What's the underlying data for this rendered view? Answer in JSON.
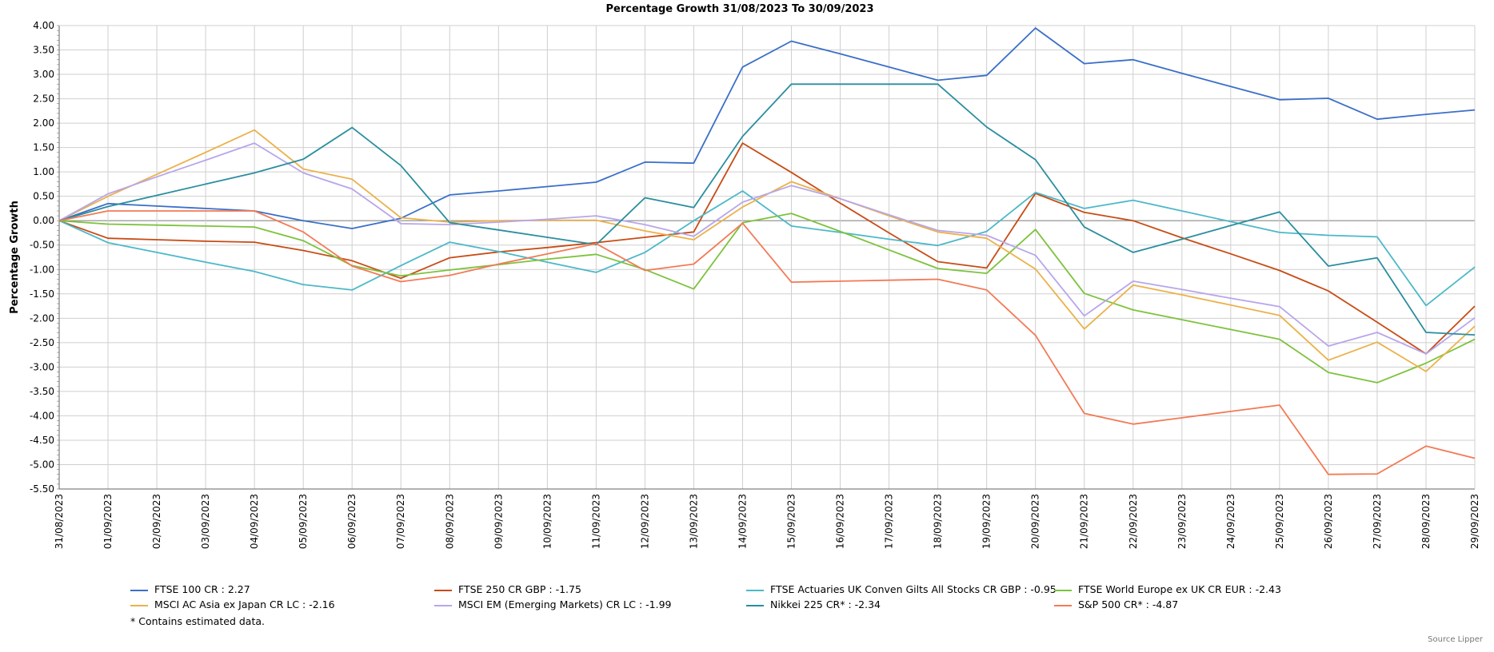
{
  "chart_data": {
    "type": "line",
    "title": "Percentage Growth 31/08/2023 To 30/09/2023",
    "ylabel": "Percentage Growth",
    "ylim": [
      -5.5,
      4.0
    ],
    "yticks": [
      "4.00",
      "3.50",
      "3.00",
      "2.50",
      "2.00",
      "1.50",
      "1.00",
      "0.50",
      "0.00",
      "-0.50",
      "-1.00",
      "-1.50",
      "-2.00",
      "-2.50",
      "-3.00",
      "-3.50",
      "-4.00",
      "-4.50",
      "-5.00",
      "-5.50"
    ],
    "x": [
      "31/08/2023",
      "01/09/2023",
      "02/09/2023",
      "03/09/2023",
      "04/09/2023",
      "05/09/2023",
      "06/09/2023",
      "07/09/2023",
      "08/09/2023",
      "09/09/2023",
      "10/09/2023",
      "11/09/2023",
      "12/09/2023",
      "13/09/2023",
      "14/09/2023",
      "15/09/2023",
      "16/09/2023",
      "17/09/2023",
      "18/09/2023",
      "19/09/2023",
      "20/09/2023",
      "21/09/2023",
      "22/09/2023",
      "23/09/2023",
      "24/09/2023",
      "25/09/2023",
      "26/09/2023",
      "27/09/2023",
      "28/09/2023",
      "29/09/2023"
    ],
    "grid": true,
    "series": [
      {
        "name": "FTSE 100 CR",
        "legend": "FTSE 100 CR : 2.27",
        "color": "#3a6fc8",
        "values": [
          0,
          0.35,
          0.3,
          0.25,
          0.2,
          0.0,
          -0.16,
          0.05,
          0.53,
          0.61,
          0.7,
          0.79,
          1.2,
          1.18,
          3.15,
          3.68,
          3.42,
          3.15,
          2.88,
          2.98,
          3.95,
          3.22,
          3.3,
          3.02,
          2.75,
          2.48,
          2.51,
          2.08,
          2.18,
          2.27
        ]
      },
      {
        "name": "FTSE 250 CR GBP",
        "legend": "FTSE 250 CR GBP : -1.75",
        "color": "#c84b14",
        "values": [
          0,
          -0.36,
          -0.39,
          -0.42,
          -0.44,
          -0.61,
          -0.82,
          -1.18,
          -0.76,
          -0.64,
          -0.55,
          -0.45,
          -0.34,
          -0.23,
          1.59,
          0.99,
          0.36,
          -0.25,
          -0.84,
          -0.97,
          0.56,
          0.17,
          0.0,
          -0.35,
          -0.68,
          -1.02,
          -1.44,
          -2.08,
          -2.73,
          -1.75
        ]
      },
      {
        "name": "FTSE Actuaries UK Conven Gilts All Stocks CR GBP",
        "legend": "FTSE Actuaries UK Conven Gilts All Stocks CR GBP : -0.95",
        "color": "#4cb8c8",
        "values": [
          0,
          -0.45,
          -0.65,
          -0.85,
          -1.04,
          -1.31,
          -1.42,
          -0.92,
          -0.44,
          -0.63,
          -0.85,
          -1.06,
          -0.65,
          0.0,
          0.61,
          -0.11,
          -0.24,
          -0.38,
          -0.51,
          -0.22,
          0.58,
          0.25,
          0.42,
          0.2,
          -0.02,
          -0.24,
          -0.3,
          -0.33,
          -1.74,
          -0.95
        ]
      },
      {
        "name": "FTSE World Europe ex UK CR EUR",
        "legend": "FTSE World Europe ex UK CR EUR : -2.43",
        "color": "#7dc23c",
        "values": [
          0,
          -0.07,
          -0.09,
          -0.11,
          -0.13,
          -0.41,
          -0.92,
          -1.13,
          -1.01,
          -0.9,
          -0.79,
          -0.69,
          -1.0,
          -1.4,
          -0.04,
          0.15,
          -0.22,
          -0.6,
          -0.98,
          -1.08,
          -0.18,
          -1.49,
          -1.83,
          -2.03,
          -2.23,
          -2.43,
          -3.11,
          -3.32,
          -2.92,
          -2.43
        ]
      },
      {
        "name": "MSCI AC Asia ex Japan CR LC",
        "legend": "MSCI AC Asia ex Japan CR LC : -2.16",
        "color": "#ebb14a",
        "values": [
          0,
          0.5,
          0.95,
          1.4,
          1.86,
          1.06,
          0.85,
          0.06,
          -0.03,
          0.0,
          0.01,
          0.01,
          -0.21,
          -0.39,
          0.28,
          0.8,
          0.45,
          0.1,
          -0.23,
          -0.36,
          -0.99,
          -2.22,
          -1.32,
          -1.52,
          -1.73,
          -1.94,
          -2.86,
          -2.49,
          -3.09,
          -2.16
        ]
      },
      {
        "name": "MSCI EM (Emerging Markets) CR LC",
        "legend": "MSCI EM (Emerging Markets) CR LC : -1.99",
        "color": "#b8a6ea",
        "values": [
          0,
          0.55,
          0.9,
          1.24,
          1.59,
          0.98,
          0.65,
          -0.06,
          -0.08,
          -0.03,
          0.03,
          0.1,
          -0.08,
          -0.32,
          0.38,
          0.72,
          0.45,
          0.12,
          -0.2,
          -0.3,
          -0.71,
          -1.95,
          -1.24,
          -1.41,
          -1.59,
          -1.76,
          -2.57,
          -2.29,
          -2.73,
          -1.99
        ]
      },
      {
        "name": "Nikkei 225 CR*",
        "legend": "Nikkei 225 CR* : -2.34",
        "color": "#2a8e9e",
        "values": [
          0,
          0.29,
          0.52,
          0.75,
          0.98,
          1.26,
          1.91,
          1.13,
          -0.04,
          -0.19,
          -0.34,
          -0.49,
          0.47,
          0.27,
          1.73,
          2.8,
          2.8,
          2.8,
          2.8,
          1.92,
          1.25,
          -0.13,
          -0.65,
          -0.38,
          -0.1,
          0.18,
          -0.93,
          -0.76,
          -2.29,
          -2.34
        ]
      },
      {
        "name": "S&P 500 CR*",
        "legend": "S&P 500 CR* : -4.87",
        "color": "#f37a55",
        "values": [
          0,
          0.2,
          0.2,
          0.2,
          0.2,
          -0.23,
          -0.93,
          -1.25,
          -1.12,
          -0.89,
          -0.68,
          -0.47,
          -1.02,
          -0.89,
          -0.05,
          -1.26,
          -1.24,
          -1.22,
          -1.2,
          -1.42,
          -2.35,
          -3.95,
          -4.17,
          -4.04,
          -3.91,
          -3.78,
          -5.2,
          -5.19,
          -4.62,
          -4.87
        ]
      }
    ]
  },
  "note": "*  Contains estimated data.",
  "source": "Source Lipper"
}
